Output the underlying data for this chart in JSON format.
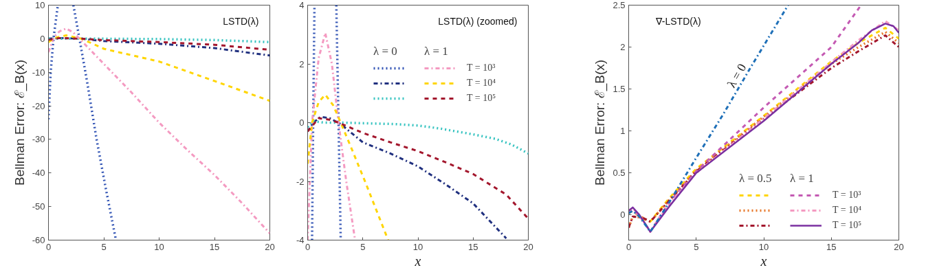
{
  "chart_data": [
    {
      "type": "line",
      "title": "LSTD(λ)",
      "ylabel": "Bellman Error: ℰ_B(x)",
      "xlim": [
        0,
        20
      ],
      "ylim": [
        -60,
        10
      ],
      "xticks": [
        0,
        5,
        10,
        15,
        20
      ],
      "yticks": [
        -60,
        -50,
        -40,
        -30,
        -20,
        -10,
        0,
        10
      ],
      "grid": false,
      "series": [
        {
          "color": "#3355b5",
          "line_style": "dotted",
          "x": [
            0,
            0.2,
            0.45,
            0.85,
            1.5,
            2.25,
            2.8,
            3.5,
            4.35,
            5.2,
            6.1
          ],
          "values": [
            -24,
            -10,
            0,
            10,
            null,
            10,
            0,
            -13,
            -30,
            -45,
            -60
          ]
        },
        {
          "color": "#20307f",
          "line_style": "dashdot",
          "x": [
            0,
            1,
            3,
            5,
            10,
            15,
            20
          ],
          "values": [
            0,
            0.2,
            0,
            -0.7,
            -1.5,
            -2.8,
            -5
          ]
        },
        {
          "color": "#36c3c0",
          "line_style": "dotted",
          "x": [
            0,
            0.5,
            1.5,
            5,
            10,
            15,
            20
          ],
          "values": [
            0,
            0,
            0,
            0,
            -0.1,
            -0.4,
            -1
          ]
        },
        {
          "color": "#f49ac1",
          "line_style": "dashdot",
          "x": [
            0,
            0.5,
            1,
            1.6,
            2.2,
            2.8,
            5,
            7.5,
            10,
            12.5,
            15,
            17.5,
            20
          ],
          "values": [
            -4,
            0.5,
            2.2,
            3,
            2,
            0,
            -7.5,
            -16,
            -25,
            -33,
            -40.6,
            -49,
            -58
          ]
        },
        {
          "color": "#ffd500",
          "line_style": "dashed",
          "x": [
            0,
            0.5,
            1.6,
            3,
            5,
            10,
            15,
            20
          ],
          "values": [
            -1,
            0.2,
            1,
            0,
            -3,
            -6.8,
            -12.6,
            -18.5
          ]
        },
        {
          "color": "#a3172d",
          "line_style": "dashed",
          "x": [
            0,
            1,
            3,
            5,
            10,
            15,
            20
          ],
          "values": [
            -0.3,
            0.2,
            0,
            -0.4,
            -1,
            -1.8,
            -3.3
          ]
        }
      ]
    },
    {
      "type": "line",
      "title": "LSTD(λ) (zoomed)",
      "xlabel": "x",
      "xlim": [
        0,
        20
      ],
      "ylim": [
        -4,
        4
      ],
      "xticks": [
        0,
        5,
        10,
        15,
        20
      ],
      "yticks": [
        -4,
        -2,
        0,
        2,
        4
      ],
      "grid": false,
      "legend": "top right",
      "annotations": [
        "λ = 0",
        "λ = 1"
      ],
      "series": [
        {
          "color": "#3355b5",
          "line_style": "dotted",
          "x": [
            0.4,
            0.5,
            0.62,
            1.5,
            2.6,
            2.8,
            3.0
          ],
          "values": [
            -4,
            0,
            4,
            null,
            4,
            0,
            -4
          ]
        },
        {
          "color": "#20307f",
          "line_style": "dashdot",
          "x": [
            0,
            0.5,
            1.2,
            2,
            3,
            5,
            7.5,
            10,
            12.5,
            15,
            18
          ],
          "values": [
            -0.3,
            0,
            0.2,
            0.15,
            -0.05,
            -0.67,
            -1.05,
            -1.49,
            -2.1,
            -2.75,
            -3.94
          ]
        },
        {
          "color": "#36c3c0",
          "line_style": "dotted",
          "x": [
            0,
            0.5,
            1.5,
            3,
            5,
            8,
            10,
            12,
            15,
            17,
            18.5,
            20
          ],
          "values": [
            -0.15,
            0.05,
            0,
            0,
            -0.02,
            -0.05,
            -0.1,
            -0.2,
            -0.4,
            -0.55,
            -0.75,
            -1.05
          ]
        },
        {
          "name": "T = 10³",
          "color": "#f49ac1",
          "line_style": "dashdot",
          "x": [
            0,
            0.4,
            1,
            1.6,
            2.2,
            2.8,
            3.5,
            4.3
          ],
          "values": [
            -4,
            0,
            2.2,
            3.05,
            2,
            0,
            -2,
            -4
          ]
        },
        {
          "name": "T = 10⁴",
          "color": "#ffd500",
          "line_style": "dashed",
          "x": [
            0,
            0.4,
            1,
            1.6,
            2.3,
            3,
            4,
            5.2,
            7.3
          ],
          "values": [
            -1.4,
            0,
            0.7,
            0.95,
            0.6,
            0,
            -0.9,
            -2,
            -4
          ]
        },
        {
          "name": "T = 10⁵",
          "color": "#a3172d",
          "line_style": "dashed",
          "x": [
            0,
            1,
            2,
            2.8,
            5,
            7.5,
            10,
            12.5,
            15,
            18,
            20
          ],
          "values": [
            -0.3,
            0.15,
            0.1,
            0,
            -0.35,
            -0.67,
            -0.97,
            -1.35,
            -1.75,
            -2.45,
            -3.27
          ]
        }
      ]
    },
    {
      "type": "line",
      "title": "∇-LSTD(λ)",
      "ylabel": "Bellman Error: ℰ_B(x)",
      "xlabel": "x",
      "xlim": [
        0,
        20
      ],
      "ylim": [
        -0.3,
        2.5
      ],
      "xticks": [
        0,
        5,
        10,
        15,
        20
      ],
      "yticks": [
        0,
        0.5,
        1,
        1.5,
        2,
        2.5
      ],
      "grid": false,
      "legend": "bottom right",
      "annotations": [
        "λ = 0.5",
        "λ = 1",
        "λ = 0"
      ],
      "series": [
        {
          "color": "#ffd500",
          "line_style": "dashed",
          "x": [
            0,
            0.3,
            1,
            1.6,
            3,
            5,
            10,
            15,
            17,
            19,
            20
          ],
          "values": [
            0.02,
            0.05,
            -0.05,
            -0.08,
            0.2,
            0.55,
            1.18,
            1.83,
            2.05,
            2.23,
            2.1
          ]
        },
        {
          "color": "#e8782a",
          "line_style": "dotted",
          "x": [
            0,
            0.3,
            1,
            1.6,
            3,
            5,
            10,
            15,
            17,
            19,
            20
          ],
          "values": [
            -0.15,
            -0.02,
            -0.03,
            -0.08,
            0.18,
            0.53,
            1.17,
            1.8,
            2.0,
            2.18,
            2.05
          ]
        },
        {
          "color": "#a3172d",
          "line_style": "dashdot",
          "x": [
            0,
            0.3,
            1,
            1.6,
            3,
            5,
            10,
            15,
            17,
            19,
            20
          ],
          "values": [
            -0.15,
            -0.02,
            -0.03,
            -0.08,
            0.17,
            0.52,
            1.15,
            1.75,
            1.95,
            2.14,
            2.0
          ]
        },
        {
          "name": "T = 10³",
          "color": "#c45ab3",
          "line_style": "dashed",
          "x": [
            0,
            0.3,
            1,
            1.6,
            3,
            5,
            10,
            15,
            17.2
          ],
          "values": [
            0.02,
            0.06,
            -0.05,
            -0.2,
            0.15,
            0.52,
            1.28,
            2.0,
            2.5
          ]
        },
        {
          "name": "T = 10⁴",
          "color": "#f49ac1",
          "line_style": "dashdot",
          "x": [
            0,
            0.3,
            1,
            1.6,
            3,
            5,
            10,
            15,
            17,
            19,
            20
          ],
          "values": [
            0.05,
            0.08,
            -0.05,
            -0.2,
            0.13,
            0.5,
            1.15,
            1.82,
            2.08,
            2.31,
            2.2
          ]
        },
        {
          "name": "T = 10⁵",
          "color": "#7a2fa0",
          "line_style": "solid",
          "x": [
            0,
            0.3,
            0.8,
            1.6,
            3,
            5,
            10,
            15,
            17,
            18,
            19,
            19.6,
            20
          ],
          "values": [
            0.05,
            0.09,
            0,
            -0.2,
            0.1,
            0.5,
            1.12,
            1.8,
            2.05,
            2.2,
            2.28,
            2.25,
            2.17
          ]
        },
        {
          "color": "#1f70b8",
          "line_style": "dashdot",
          "x": [
            0,
            0.3,
            0.8,
            1.6,
            2.2,
            3,
            5,
            7,
            9,
            11.8
          ],
          "values": [
            0.02,
            0.05,
            -0.02,
            -0.2,
            -0.05,
            0.15,
            0.68,
            1.2,
            1.75,
            2.5
          ]
        }
      ]
    }
  ]
}
